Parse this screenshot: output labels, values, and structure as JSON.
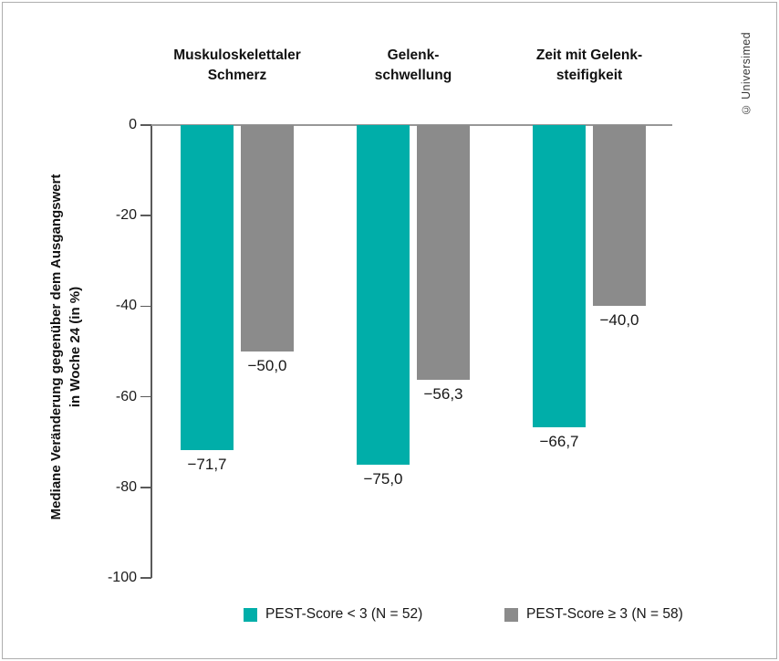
{
  "copyright": "© Universimed",
  "chart_data": {
    "type": "bar",
    "title": "",
    "categories": [
      [
        "Muskuloskelettaler",
        "Schmerz"
      ],
      [
        "Gelenk-",
        "schwellung"
      ],
      [
        "Zeit mit Gelenk-",
        "steifigkeit"
      ]
    ],
    "series": [
      {
        "name": "PEST-Score < 3 (N = 52)",
        "color": "#00AEA9",
        "values": [
          -71.7,
          -75.0,
          -66.7
        ],
        "value_labels": [
          "−71,7",
          "−75,0",
          "−66,7"
        ]
      },
      {
        "name": "PEST-Score ≥ 3 (N = 58)",
        "color": "#8B8B8B",
        "values": [
          -50.0,
          -56.3,
          -40.0
        ],
        "value_labels": [
          "−50,0",
          "−56,3",
          "−40,0"
        ]
      }
    ],
    "ylabel_lines": [
      "Mediane Veränderung gegenüber dem Ausgangswert",
      "in Woche 24 (in %)"
    ],
    "yticks": [
      0,
      -20,
      -40,
      -60,
      -80,
      -100
    ],
    "ytick_labels": [
      "0",
      "-20",
      "-40",
      "-60",
      "-80",
      "-100"
    ],
    "ylim": [
      -100,
      0
    ],
    "grid": false,
    "legend_position": "bottom"
  }
}
